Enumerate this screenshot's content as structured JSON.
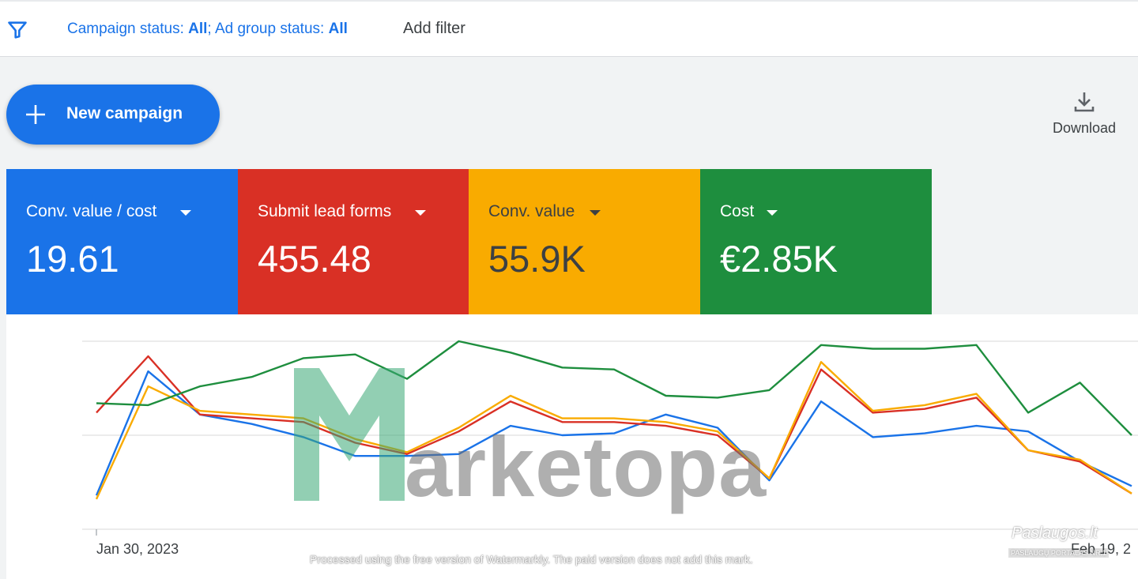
{
  "filter_bar": {
    "campaign_status_label": "Campaign status: ",
    "campaign_status_value": "All",
    "separator": "; ",
    "ad_group_status_label": "Ad group status: ",
    "ad_group_status_value": "All",
    "add_filter": "Add filter"
  },
  "toolbar": {
    "new_campaign": "New campaign",
    "download": "Download"
  },
  "metrics": [
    {
      "name": "Conv. value / cost",
      "value": "19.61",
      "color": "#1a73e8"
    },
    {
      "name": "Submit lead forms",
      "value": "455.48",
      "color": "#d93025"
    },
    {
      "name": "Conv. value",
      "value": "55.9K",
      "color": "#f9ab00"
    },
    {
      "name": "Cost",
      "value": "€2.85K",
      "color": "#1e8e3e"
    }
  ],
  "chart_data": {
    "type": "line",
    "x_start_label": "Jan 30, 2023",
    "x_end_label": "Feb 19, 2",
    "ylim": [
      0,
      1
    ],
    "grid": true,
    "series": [
      {
        "color": "#1a73e8",
        "values": [
          0.18,
          0.84,
          0.61,
          0.56,
          0.49,
          0.39,
          0.39,
          0.4,
          0.55,
          0.5,
          0.51,
          0.61,
          0.54,
          0.26,
          0.68,
          0.49,
          0.51,
          0.55,
          0.52,
          0.36,
          0.23
        ]
      },
      {
        "color": "#d93025",
        "values": [
          0.62,
          0.92,
          0.61,
          0.59,
          0.57,
          0.46,
          0.4,
          0.52,
          0.68,
          0.57,
          0.57,
          0.55,
          0.5,
          0.27,
          0.85,
          0.62,
          0.64,
          0.7,
          0.42,
          0.36,
          0.19
        ]
      },
      {
        "color": "#f9ab00",
        "values": [
          0.16,
          0.76,
          0.63,
          0.61,
          0.59,
          0.48,
          0.41,
          0.54,
          0.71,
          0.59,
          0.59,
          0.57,
          0.52,
          0.27,
          0.89,
          0.63,
          0.66,
          0.72,
          0.42,
          0.37,
          0.19
        ]
      },
      {
        "color": "#1e8e3e",
        "values": [
          0.67,
          0.66,
          0.76,
          0.81,
          0.91,
          0.93,
          0.8,
          1.0,
          0.94,
          0.86,
          0.85,
          0.71,
          0.7,
          0.74,
          0.98,
          0.96,
          0.96,
          0.98,
          0.62,
          0.78,
          0.5
        ]
      }
    ]
  },
  "watermark": {
    "brand": "arketopa",
    "note": "Processed using the free version of Watermarkly. The paid version does not add this mark.",
    "stamp_title": "Paslaugos.lt",
    "stamp_sub": "PASLAUGŲ PORTALAS NR.1"
  }
}
